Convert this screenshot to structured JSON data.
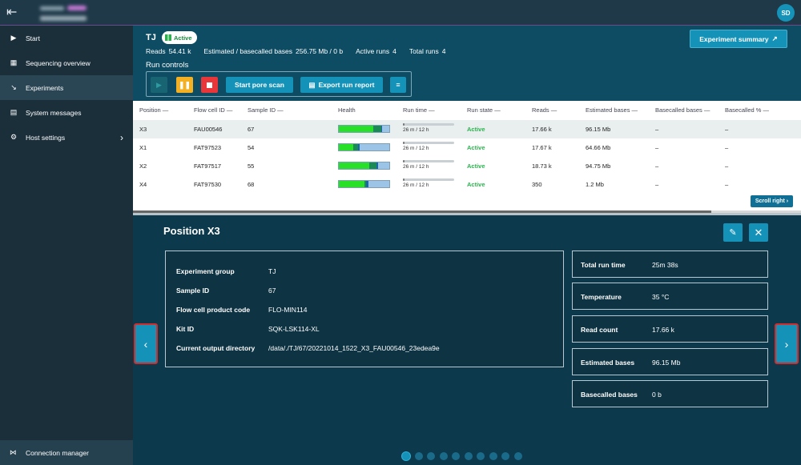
{
  "topbar": {
    "menu_icon": "menu-icon",
    "avatar_initials": "SD"
  },
  "sidebar": {
    "items": [
      {
        "label": "Start",
        "icon": "play-circle-icon"
      },
      {
        "label": "Sequencing overview",
        "icon": "grid-icon"
      },
      {
        "label": "Experiments",
        "icon": "chart-line-icon",
        "active": true
      },
      {
        "label": "System messages",
        "icon": "message-icon"
      },
      {
        "label": "Host settings",
        "icon": "gear-icon"
      }
    ],
    "connection_manager": "Connection manager"
  },
  "experiment": {
    "title": "TJ",
    "status": "Active",
    "reads_label": "Reads",
    "reads_value": "54.41 k",
    "bases_label": "Estimated / basecalled bases",
    "bases_value": "256.75 Mb / 0 b",
    "active_runs_label": "Active runs",
    "active_runs_value": "4",
    "total_runs_label": "Total runs",
    "total_runs_value": "4",
    "summary_button": "Experiment summary",
    "run_controls_label": "Run controls",
    "pore_scan_button": "Start pore scan",
    "export_button": "Export run report"
  },
  "table": {
    "headers": [
      "Position",
      "Flow cell ID",
      "Sample ID",
      "Health",
      "Run time",
      "Run state",
      "Reads",
      "Estimated bases",
      "Basecalled bases",
      "Basecalled %"
    ],
    "rows": [
      {
        "position": "X3",
        "flow_cell": "FAU00546",
        "sample": "67",
        "runtime": "26 m / 12 h",
        "runtime_frac": 0.036,
        "state": "Active",
        "reads": "17.66 k",
        "est_bases": "96.15 Mb",
        "basecalled": "–",
        "basecalled_pct": "–"
      },
      {
        "position": "X1",
        "flow_cell": "FAT97523",
        "sample": "54",
        "runtime": "26 m / 12 h",
        "runtime_frac": 0.036,
        "state": "Active",
        "reads": "17.67 k",
        "est_bases": "64.66 Mb",
        "basecalled": "–",
        "basecalled_pct": "–"
      },
      {
        "position": "X2",
        "flow_cell": "FAT97517",
        "sample": "55",
        "runtime": "26 m / 12 h",
        "runtime_frac": 0.036,
        "state": "Active",
        "reads": "18.73 k",
        "est_bases": "94.75 Mb",
        "basecalled": "–",
        "basecalled_pct": "–"
      },
      {
        "position": "X4",
        "flow_cell": "FAT97530",
        "sample": "68",
        "runtime": "26 m / 12 h",
        "runtime_frac": 0.036,
        "state": "Active",
        "reads": "350",
        "est_bases": "1.2 Mb",
        "basecalled": "–",
        "basecalled_pct": "–"
      }
    ],
    "scroll_right": "Scroll right"
  },
  "detail": {
    "title": "Position X3",
    "info": [
      {
        "key": "Experiment group",
        "value": "TJ"
      },
      {
        "key": "Sample ID",
        "value": "67"
      },
      {
        "key": "Flow cell product code",
        "value": "FLO-MIN114"
      },
      {
        "key": "Kit ID",
        "value": "SQK-LSK114-XL"
      },
      {
        "key": "Current output directory",
        "value": "/data/./TJ/67/20221014_1522_X3_FAU00546_23edea9e"
      }
    ],
    "stats": [
      {
        "key": "Total run time",
        "value": "25m 38s"
      },
      {
        "key": "Temperature",
        "value": "35 °C"
      },
      {
        "key": "Read count",
        "value": "17.66 k"
      },
      {
        "key": "Estimated bases",
        "value": "96.15 Mb"
      },
      {
        "key": "Basecalled bases",
        "value": "0 b"
      }
    ],
    "pager_count": 10,
    "pager_active": 0
  },
  "colors": {
    "accent": "#1592b8",
    "active_green": "#2ab34d",
    "pause": "#f3b023",
    "stop": "#e8373a"
  }
}
